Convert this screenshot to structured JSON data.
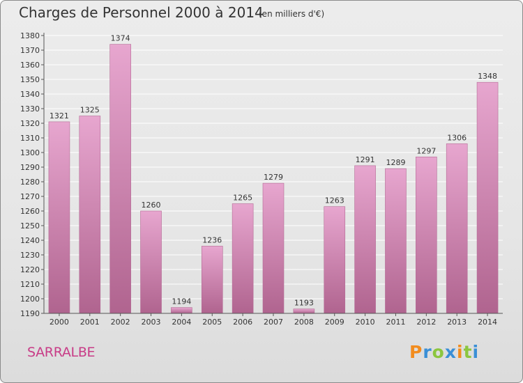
{
  "header": {
    "title": "Charges de Personnel 2000 à 2014",
    "unit": "(en milliers d'€)"
  },
  "footer": {
    "commune": "SARRALBE",
    "logo": {
      "letters": [
        "P",
        "r",
        "o",
        "x",
        "i",
        "t",
        "i"
      ],
      "colors": [
        "#f28c1e",
        "#3a8fd6",
        "#8cc63f",
        "#3a8fd6",
        "#f28c1e",
        "#8cc63f",
        "#3a8fd6"
      ]
    }
  },
  "colors": {
    "bar_top": "#e7a6cf",
    "bar_bottom": "#b0648f",
    "grid": "#ffffff",
    "axis": "#555555"
  },
  "chart_data": {
    "type": "bar",
    "title": "Charges de Personnel 2000 à 2014",
    "categories": [
      "2000",
      "2001",
      "2002",
      "2003",
      "2004",
      "2005",
      "2006",
      "2007",
      "2008",
      "2009",
      "2010",
      "2011",
      "2012",
      "2013",
      "2014"
    ],
    "values": [
      1321,
      1325,
      1374,
      1260,
      1194,
      1236,
      1265,
      1279,
      1193,
      1263,
      1291,
      1289,
      1297,
      1306,
      1348
    ],
    "labels": [
      "1321",
      "1325",
      "1374",
      "1260",
      "1194",
      "1236",
      "1265",
      "1279",
      "1193",
      "1263",
      "1291",
      "1289",
      "1297",
      "1306",
      "1348"
    ],
    "yticks": [
      "1190",
      "1200",
      "1210",
      "1220",
      "1230",
      "1240",
      "1250",
      "1260",
      "1270",
      "1280",
      "1290",
      "1300",
      "1310",
      "1320",
      "1330",
      "1340",
      "1350",
      "1360",
      "1370",
      "1380"
    ],
    "ylim": [
      1190,
      1380
    ],
    "ytick_step": 10,
    "grid": true
  }
}
